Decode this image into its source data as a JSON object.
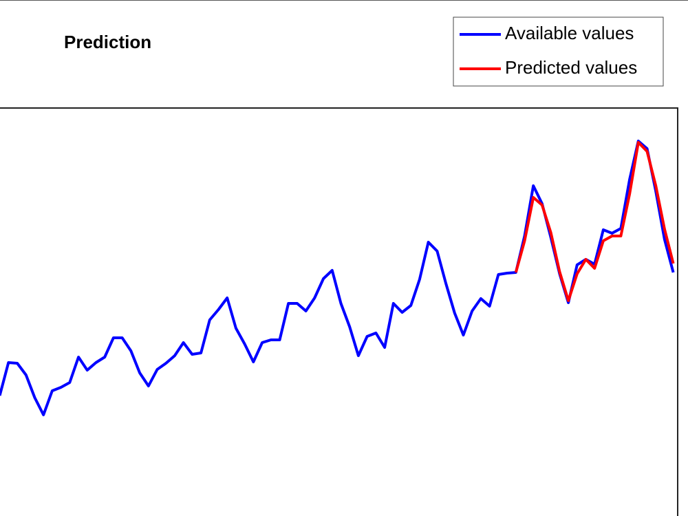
{
  "chart_data": {
    "type": "line",
    "title": "Prediction",
    "xlim": [
      0.4,
      78.5
    ],
    "ylim": [
      0,
      60
    ],
    "legend": "upper right",
    "series": [
      {
        "name": "Available values",
        "color": "#0000ff",
        "x": [
          1,
          2,
          3,
          4,
          5,
          6,
          7,
          8,
          9,
          10,
          11,
          12,
          13,
          14,
          15,
          16,
          17,
          18,
          19,
          20,
          21,
          22,
          23,
          24,
          25,
          26,
          27,
          28,
          29,
          30,
          31,
          32,
          33,
          34,
          35,
          36,
          37,
          38,
          39,
          40,
          41,
          42,
          43,
          44,
          45,
          46,
          47,
          48,
          49,
          50,
          51,
          52,
          53,
          54,
          55,
          56,
          57,
          58,
          59,
          60,
          61,
          62,
          63,
          64,
          65,
          66,
          67,
          68,
          69,
          70,
          71,
          72,
          73,
          74,
          75,
          76,
          77,
          78
        ],
        "values": [
          18.2,
          23.0,
          22.9,
          21.2,
          17.9,
          15.4,
          18.9,
          19.4,
          20.1,
          23.8,
          21.9,
          23.0,
          23.8,
          26.6,
          26.6,
          24.7,
          21.5,
          19.6,
          22.0,
          22.9,
          24.0,
          25.9,
          24.2,
          24.4,
          29.2,
          30.7,
          32.4,
          28.0,
          25.7,
          23.1,
          25.9,
          26.3,
          26.3,
          31.6,
          31.6,
          30.5,
          32.4,
          35.2,
          36.4,
          31.6,
          28.2,
          24.0,
          26.8,
          27.3,
          25.2,
          31.6,
          30.3,
          31.3,
          35.1,
          40.5,
          39.2,
          34.5,
          30.2,
          27.0,
          30.5,
          32.3,
          31.2,
          35.8,
          36.0,
          36.1,
          41.4,
          48.7,
          46.1,
          41.2,
          35.9,
          31.7,
          37.2,
          38.0,
          37.3,
          42.3,
          41.8,
          42.5,
          49.6,
          55.2,
          54.1,
          47.9,
          40.9,
          36.1
        ]
      },
      {
        "name": "Predicted values",
        "color": "#ff0000",
        "x": [
          60,
          61,
          62,
          63,
          64,
          65,
          66,
          67,
          68,
          69,
          70,
          71,
          72,
          73,
          74,
          75,
          76,
          77,
          78
        ],
        "values": [
          36.1,
          40.7,
          47.0,
          45.9,
          41.9,
          36.2,
          32.0,
          35.9,
          38.0,
          36.7,
          40.7,
          41.4,
          41.4,
          47.5,
          55.0,
          53.7,
          48.7,
          42.4,
          37.4
        ]
      }
    ]
  }
}
